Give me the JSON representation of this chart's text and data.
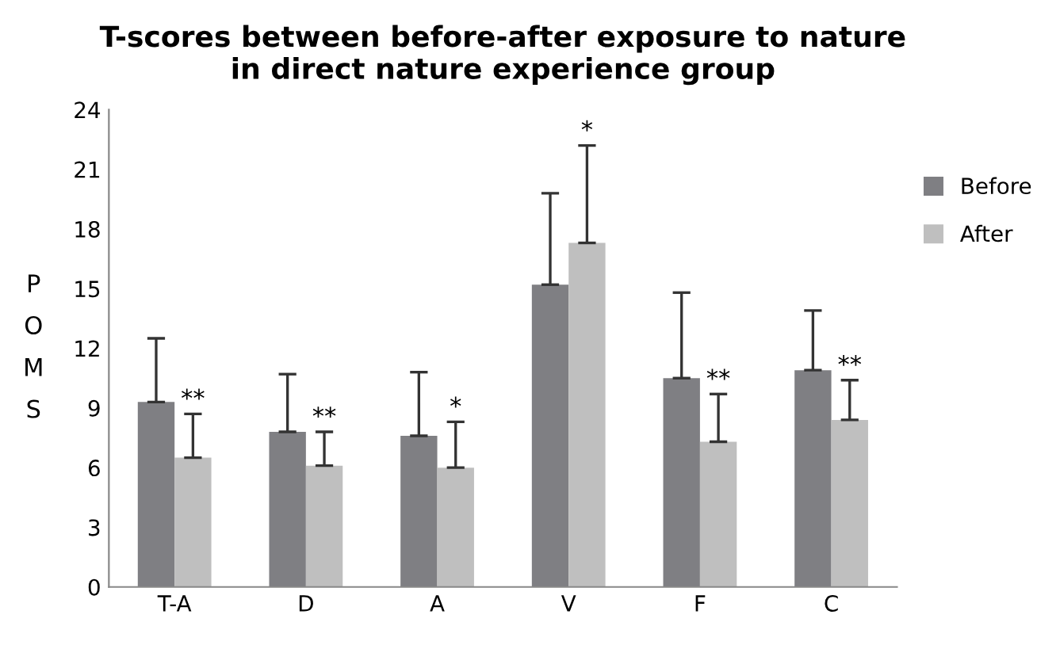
{
  "chart_data": {
    "type": "bar",
    "title": "T-scores between before-after exposure to nature\nin direct nature experience group",
    "ylabel": "POMS",
    "categories": [
      "T-A",
      "D",
      "A",
      "V",
      "F",
      "C"
    ],
    "series": [
      {
        "name": "Before",
        "color": "#7f7f83",
        "values": [
          9.3,
          7.8,
          7.6,
          15.2,
          10.5,
          10.9
        ],
        "errors": [
          [
            9.3,
            12.5
          ],
          [
            7.8,
            10.7
          ],
          [
            7.6,
            10.8
          ],
          [
            15.2,
            19.8
          ],
          [
            10.5,
            14.8
          ],
          [
            10.9,
            13.9
          ]
        ]
      },
      {
        "name": "After",
        "color": "#bfbfbf",
        "values": [
          6.5,
          6.1,
          6.0,
          17.3,
          7.3,
          8.4
        ],
        "errors": [
          [
            6.5,
            8.7
          ],
          [
            6.1,
            7.8
          ],
          [
            6.0,
            8.3
          ],
          [
            17.3,
            22.2
          ],
          [
            7.3,
            9.7
          ],
          [
            8.4,
            10.4
          ]
        ]
      }
    ],
    "annotations": [
      "**",
      "**",
      "*",
      "*",
      "**",
      "**"
    ],
    "ylim": [
      0,
      24
    ],
    "yticks": [
      0,
      3,
      6,
      9,
      12,
      15,
      18,
      21,
      24
    ],
    "grid": false,
    "legend": "right"
  }
}
